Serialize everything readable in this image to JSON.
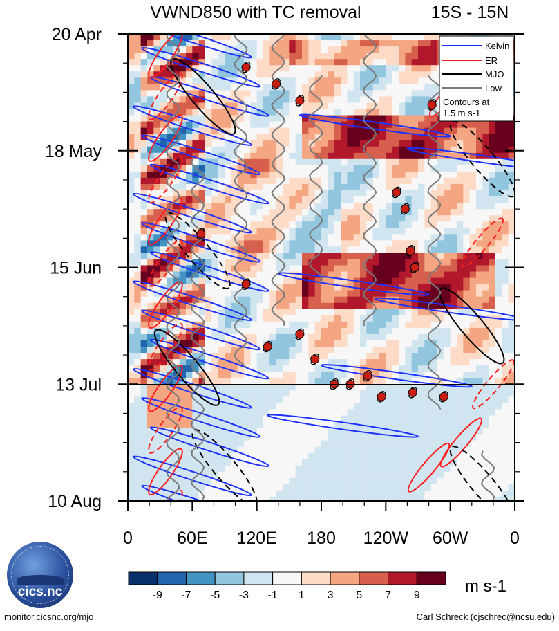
{
  "chart_data": {
    "type": "heatmap",
    "title": "VWND850 with TC removal",
    "region": "15S - 15N",
    "x_ticks": [
      "0",
      "60E",
      "120E",
      "180",
      "120W",
      "60W",
      "0"
    ],
    "x_range_deg": [
      0,
      360
    ],
    "y_ticks": [
      "20 Apr",
      "18 May",
      "15 Jun",
      "13 Jul",
      "10 Aug"
    ],
    "y_range_days": [
      0,
      112
    ],
    "forecast_start": "13 Jul",
    "legend": {
      "position": "top-right",
      "entries": [
        {
          "name": "Kelvin",
          "color": "#1e32ff"
        },
        {
          "name": "ER",
          "color": "#ff1e1e"
        },
        {
          "name": "MJO",
          "color": "#000000"
        },
        {
          "name": "Low",
          "color": "#7a7a7a"
        }
      ],
      "note_line1": "Contours at",
      "note_line2": "1.5 m s-1"
    },
    "colorbar": {
      "labels": [
        "-9",
        "-7",
        "-5",
        "-3",
        "-1",
        "1",
        "3",
        "5",
        "7",
        "9"
      ],
      "colors": [
        "#08306b",
        "#2166ac",
        "#4393c3",
        "#92c5de",
        "#d1e5f0",
        "#f7f7f7",
        "#fddbc7",
        "#f4a582",
        "#d6604d",
        "#b2182b",
        "#67001f"
      ],
      "units": "m s-1"
    },
    "tropical_cyclones": [
      {
        "lon": 110,
        "day": 8
      },
      {
        "lon": 138,
        "day": 12
      },
      {
        "lon": 160,
        "day": 16
      },
      {
        "lon": 283,
        "day": 17
      },
      {
        "lon": 250,
        "day": 38
      },
      {
        "lon": 258,
        "day": 42
      },
      {
        "lon": 68,
        "day": 48
      },
      {
        "lon": 263,
        "day": 52
      },
      {
        "lon": 267,
        "day": 56
      },
      {
        "lon": 110,
        "day": 60
      },
      {
        "lon": 160,
        "day": 72
      },
      {
        "lon": 130,
        "day": 75
      },
      {
        "lon": 174,
        "day": 78
      },
      {
        "lon": 192,
        "day": 84
      },
      {
        "lon": 207,
        "day": 84
      },
      {
        "lon": 223,
        "day": 82
      },
      {
        "lon": 236,
        "day": 87
      },
      {
        "lon": 265,
        "day": 86
      },
      {
        "lon": 294,
        "day": 87
      }
    ]
  },
  "footer": {
    "left": "monitor.cicsnc.org/mjo",
    "right": "Carl Schreck (cjschrec@ncsu.edu)",
    "logo_text": "cics.nc"
  }
}
